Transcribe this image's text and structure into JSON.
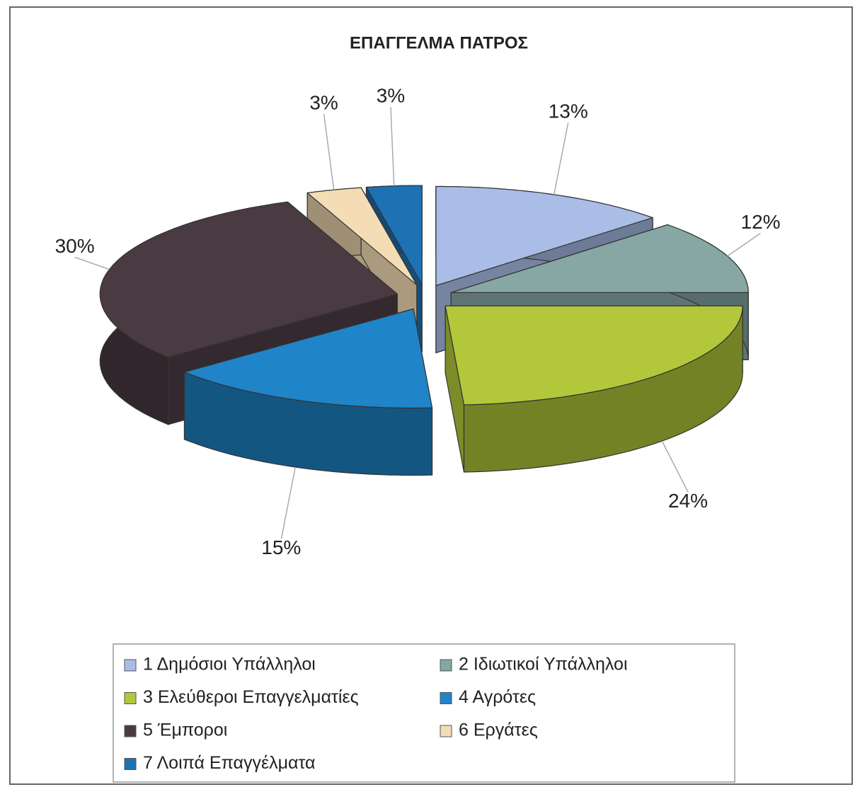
{
  "chart_data": {
    "type": "pie3d",
    "title": "ΕΠΑΓΓΕΛΜΑ ΠΑΤΡΟΣ",
    "categories": [
      "1 Δημόσιοι Υπάλληλοι",
      "2 Ιδιωτικοί Υπάλληλοι",
      "3 Ελεύθεροι Επαγγελματίες",
      "4 Αγρότες",
      "5 Έμποροι",
      "6 Εργάτες",
      "7 Λοιπά Επαγγέλματα"
    ],
    "values": [
      13,
      12,
      24,
      15,
      30,
      3,
      3
    ],
    "value_labels": [
      "13%",
      "12%",
      "24%",
      "15%",
      "30%",
      "3%",
      "3%"
    ],
    "colors": [
      "#a9bde6",
      "#86a7a4",
      "#b2c83a",
      "#1f84c8",
      "#4a3a42",
      "#f4dcb4",
      "#1d72b4"
    ],
    "legend": "bottom"
  }
}
